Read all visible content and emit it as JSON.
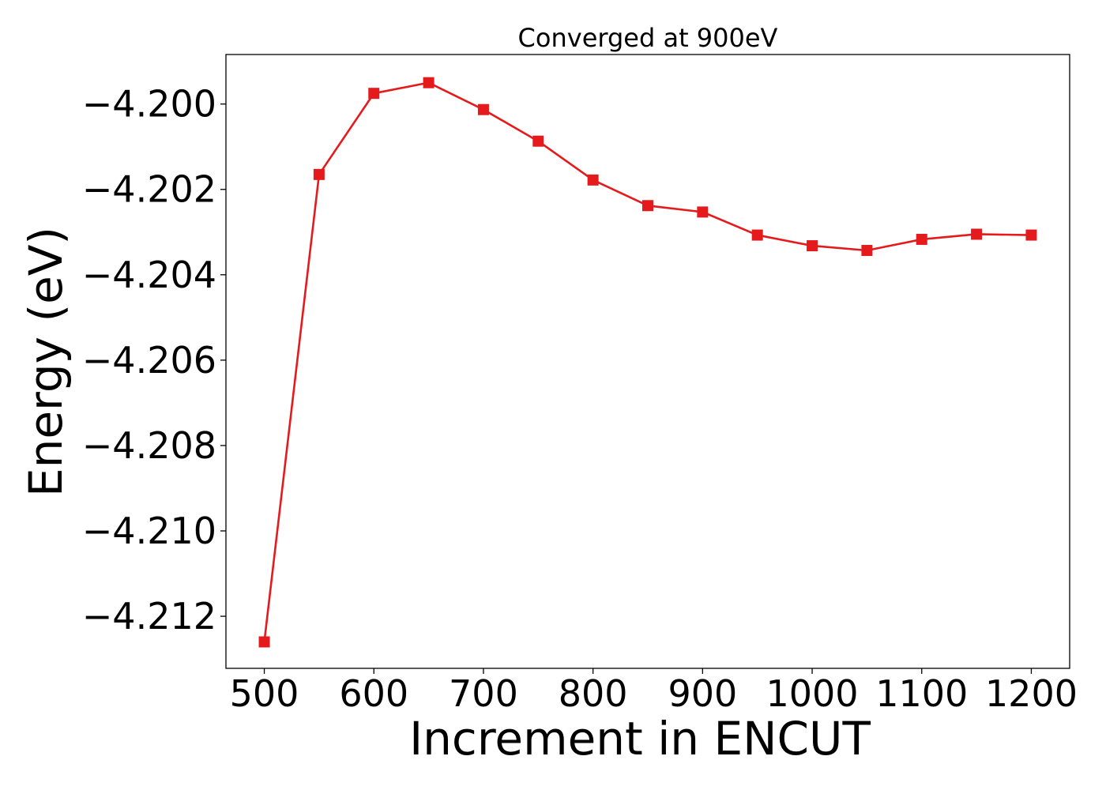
{
  "chart_data": {
    "type": "line",
    "title": "Converged at 900eV",
    "xlabel": "Increment in ENCUT",
    "ylabel": "Energy (eV)",
    "x": [
      500,
      550,
      600,
      650,
      700,
      750,
      800,
      850,
      900,
      950,
      1000,
      1050,
      1100,
      1150,
      1200
    ],
    "series": [
      {
        "values": [
          -4.2126,
          -4.20165,
          -4.19975,
          -4.1995,
          -4.20013,
          -4.20087,
          -4.20178,
          -4.20238,
          -4.20253,
          -4.20307,
          -4.20332,
          -4.20343,
          -4.20317,
          -4.20305,
          -4.20307
        ],
        "color": "#e41a1c",
        "marker": "square"
      }
    ],
    "xlim": [
      465,
      1235
    ],
    "ylim": [
      -4.21322,
      -4.19884
    ],
    "x_ticks": [
      500,
      600,
      700,
      800,
      900,
      1000,
      1100,
      1200
    ],
    "x_tick_labels": [
      "500",
      "600",
      "700",
      "800",
      "900",
      "1000",
      "1100",
      "1200"
    ],
    "y_ticks": [
      -4.2,
      -4.202,
      -4.204,
      -4.206,
      -4.208,
      -4.21,
      -4.212
    ],
    "y_tick_labels": [
      "−4.200",
      "−4.202",
      "−4.204",
      "−4.206",
      "−4.208",
      "−4.210",
      "−4.212"
    ],
    "grid": false,
    "legend": false
  }
}
